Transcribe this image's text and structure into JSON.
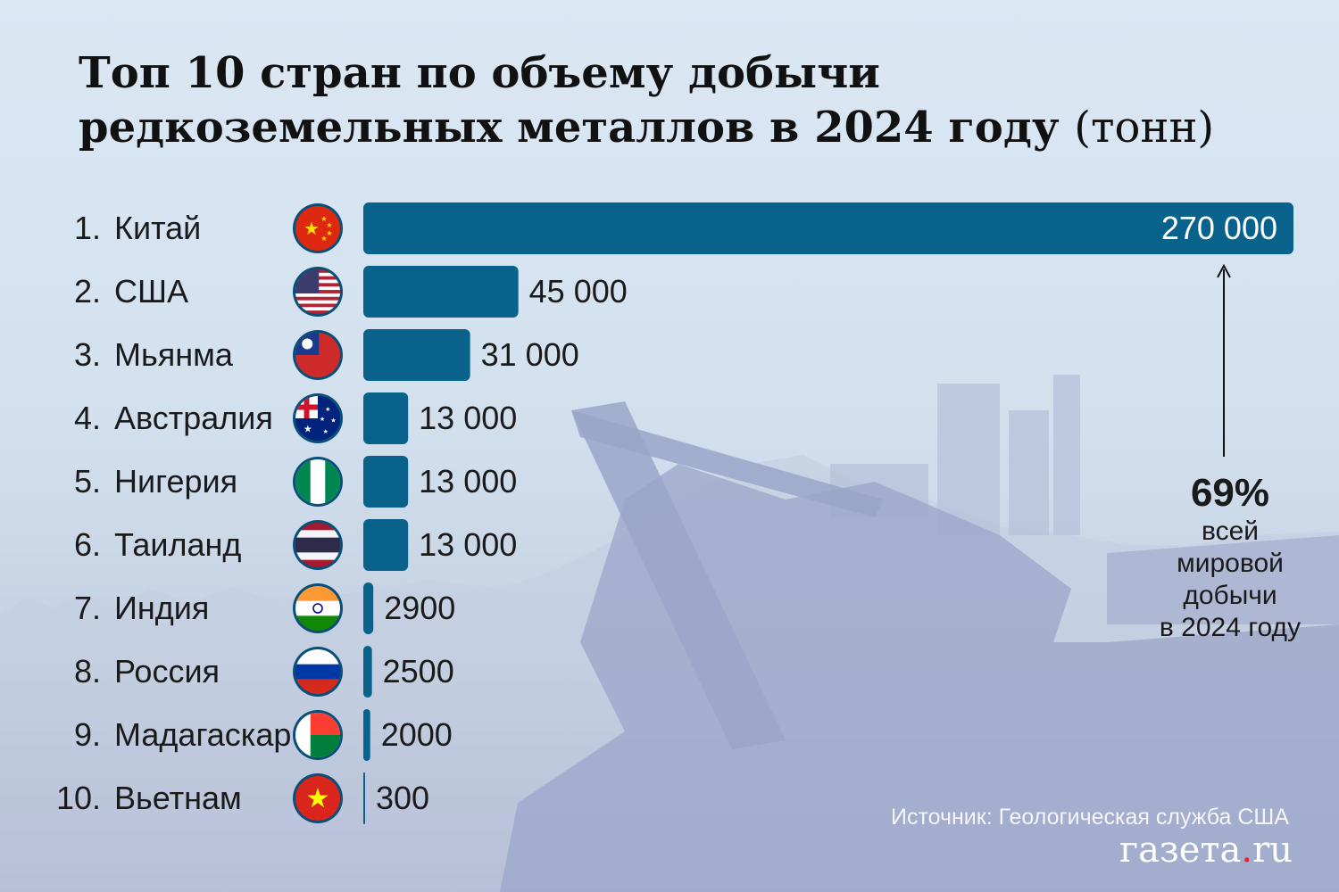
{
  "title": {
    "line1": "Топ 10 стран по объему добычи",
    "line2": "редкоземельных металлов в 2024 году",
    "unit": "(тонн)"
  },
  "chart_data": {
    "type": "bar",
    "orientation": "horizontal",
    "ranks": [
      "1.",
      "2.",
      "3.",
      "4.",
      "5.",
      "6.",
      "7.",
      "8.",
      "9.",
      "10."
    ],
    "categories": [
      "Китай",
      "США",
      "Мьянма",
      "Австралия",
      "Нигерия",
      "Таиланд",
      "Индия",
      "Россия",
      "Мадагаскар",
      "Вьетнам"
    ],
    "values": [
      270000,
      45000,
      31000,
      13000,
      13000,
      13000,
      2900,
      2500,
      2000,
      300
    ],
    "value_labels": [
      "270 000",
      "45 000",
      "31 000",
      "13 000",
      "13 000",
      "13 000",
      "2900",
      "2500",
      "2000",
      "300"
    ],
    "flag_icons": [
      "china-flag-icon",
      "usa-flag-icon",
      "myanmar-flag-icon",
      "australia-flag-icon",
      "nigeria-flag-icon",
      "thailand-flag-icon",
      "india-flag-icon",
      "russia-flag-icon",
      "madagascar-flag-icon",
      "vietnam-flag-icon"
    ],
    "bar_color": "#09628c",
    "grid": false,
    "legend": "none"
  },
  "annotation": {
    "percent": "69%",
    "text": "всей\nмировой\nдобычи\nв 2024 году"
  },
  "source": "Источник: Геологическая служба США",
  "logo": {
    "main": "газета",
    "dot": ".",
    "tld": "ru"
  }
}
